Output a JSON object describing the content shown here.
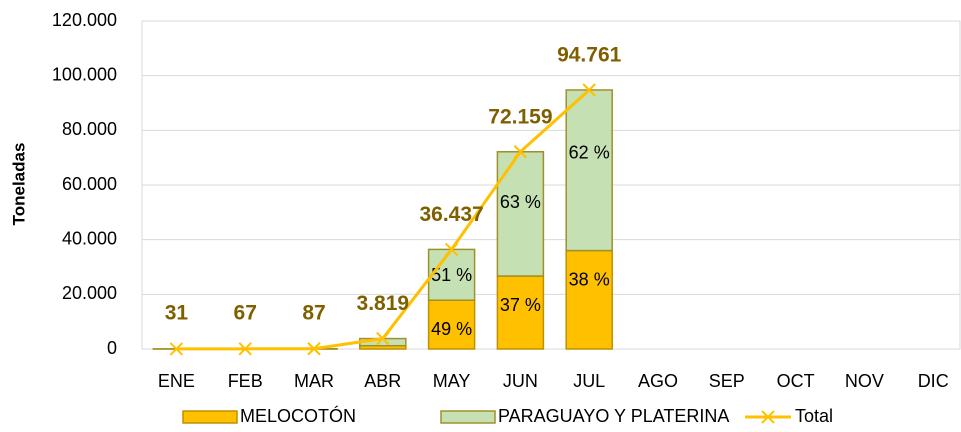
{
  "chart_data": {
    "type": "stacked_bar_line",
    "y_label": "Toneladas",
    "categories": [
      "ENE",
      "FEB",
      "MAR",
      "ABR",
      "MAY",
      "JUN",
      "JUL",
      "AGO",
      "SEP",
      "OCT",
      "NOV",
      "DIC"
    ],
    "series": [
      {
        "name": "MELOCOTÓN",
        "color": "#FFC000",
        "values": [
          10,
          20,
          30,
          1200,
          17854,
          26699,
          36009,
          null,
          null,
          null,
          null,
          null
        ],
        "share_labels": [
          null,
          null,
          null,
          null,
          "49 %",
          "37 %",
          "38 %",
          null,
          null,
          null,
          null,
          null
        ]
      },
      {
        "name": "PARAGUAYO Y PLATERINA",
        "color": "#C5E0B3",
        "values": [
          21,
          47,
          57,
          2619,
          18583,
          45460,
          58752,
          null,
          null,
          null,
          null,
          null
        ],
        "share_labels": [
          null,
          null,
          null,
          null,
          "51 %",
          "63 %",
          "62 %",
          null,
          null,
          null,
          null,
          null
        ]
      },
      {
        "name": "Total",
        "color": "#FFC000",
        "type": "line",
        "values": [
          31,
          67,
          87,
          3819,
          36437,
          72159,
          94761,
          null,
          null,
          null,
          null,
          null
        ],
        "value_labels": [
          "31",
          "67",
          "87",
          "3.819",
          "36.437",
          "72.159",
          "94.761",
          null,
          null,
          null,
          null,
          null
        ]
      }
    ],
    "ylim": [
      0,
      120000
    ],
    "yticks": [
      0,
      {
        "value": 20000,
        "label": "20.000"
      },
      {
        "value": 40000,
        "label": "40.000"
      },
      {
        "value": 60000,
        "label": "60.000"
      },
      {
        "value": 80000,
        "label": "80.000"
      },
      {
        "value": 100000,
        "label": "100.000"
      },
      {
        "value": 120000,
        "label": "120.000"
      }
    ],
    "grid": true
  }
}
